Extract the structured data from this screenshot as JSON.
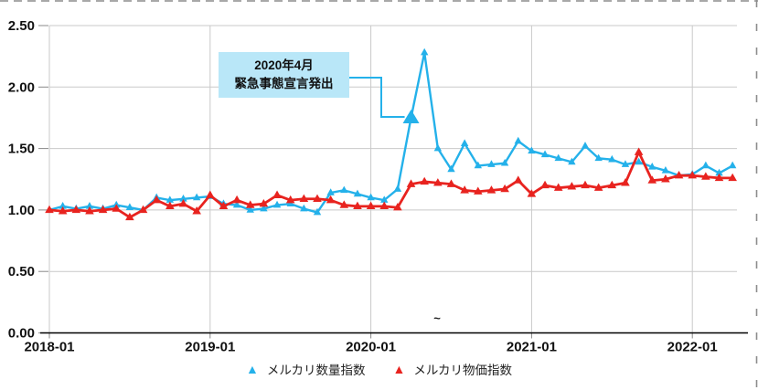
{
  "chart_data": {
    "type": "line",
    "title": "",
    "xlabel": "",
    "ylabel": "",
    "ylim": [
      0,
      2.5
    ],
    "grid": true,
    "legend_position": "bottom",
    "x": [
      "2018-01",
      "2018-02",
      "2018-03",
      "2018-04",
      "2018-05",
      "2018-06",
      "2018-07",
      "2018-08",
      "2018-09",
      "2018-10",
      "2018-11",
      "2018-12",
      "2019-01",
      "2019-02",
      "2019-03",
      "2019-04",
      "2019-05",
      "2019-06",
      "2019-07",
      "2019-08",
      "2019-09",
      "2019-10",
      "2019-11",
      "2019-12",
      "2020-01",
      "2020-02",
      "2020-03",
      "2020-04",
      "2020-05",
      "2020-06",
      "2020-07",
      "2020-08",
      "2020-09",
      "2020-10",
      "2020-11",
      "2020-12",
      "2021-01",
      "2021-02",
      "2021-03",
      "2021-04",
      "2021-05",
      "2021-06",
      "2021-07",
      "2021-08",
      "2021-09",
      "2021-10",
      "2021-11",
      "2021-12",
      "2022-01",
      "2022-02",
      "2022-03",
      "2022-04"
    ],
    "series": [
      {
        "name": "メルカリ数量指数",
        "color": "#24b1ea",
        "line_width": 2.4,
        "values": [
          1.0,
          1.03,
          1.01,
          1.03,
          1.01,
          1.04,
          1.02,
          1.0,
          1.1,
          1.08,
          1.09,
          1.1,
          1.11,
          1.05,
          1.04,
          1.0,
          1.01,
          1.04,
          1.05,
          1.01,
          0.98,
          1.14,
          1.16,
          1.13,
          1.1,
          1.08,
          1.17,
          1.75,
          2.28,
          1.5,
          1.33,
          1.54,
          1.36,
          1.37,
          1.38,
          1.56,
          1.48,
          1.45,
          1.42,
          1.39,
          1.52,
          1.42,
          1.41,
          1.37,
          1.39,
          1.35,
          1.32,
          1.28,
          1.29,
          1.36,
          1.3,
          1.36
        ]
      },
      {
        "name": "メルカリ物価指数",
        "color": "#e8231f",
        "line_width": 2.8,
        "values": [
          1.0,
          0.99,
          1.0,
          0.99,
          1.0,
          1.01,
          0.94,
          1.0,
          1.08,
          1.03,
          1.05,
          0.99,
          1.12,
          1.03,
          1.08,
          1.04,
          1.05,
          1.12,
          1.08,
          1.09,
          1.09,
          1.08,
          1.04,
          1.03,
          1.03,
          1.03,
          1.02,
          1.21,
          1.23,
          1.22,
          1.21,
          1.16,
          1.15,
          1.16,
          1.17,
          1.24,
          1.13,
          1.2,
          1.18,
          1.19,
          1.2,
          1.18,
          1.2,
          1.22,
          1.47,
          1.24,
          1.25,
          1.28,
          1.28,
          1.27,
          1.26,
          1.26
        ]
      }
    ],
    "yticks": [
      {
        "label": "0.00",
        "value": 0.0
      },
      {
        "label": "0.50",
        "value": 0.5
      },
      {
        "label": "1.00",
        "value": 1.0
      },
      {
        "label": "1.50",
        "value": 1.5
      },
      {
        "label": "2.00",
        "value": 2.0
      },
      {
        "label": "2.50",
        "value": 2.5
      }
    ],
    "xticks": [
      {
        "label": "2018-01",
        "month_index": 0
      },
      {
        "label": "2019-01",
        "month_index": 12
      },
      {
        "label": "2020-01",
        "month_index": 24
      },
      {
        "label": "2021-01",
        "month_index": 36
      },
      {
        "label": "2022-01",
        "month_index": 48
      }
    ],
    "annotation": {
      "line1": "2020年4月",
      "line2": "緊急事態宣言発出",
      "box_fill": "#b9e7f8",
      "target_series_index": 0,
      "target_month_index": 27
    },
    "highlight_point": {
      "series_index": 0,
      "month_index": 27
    }
  },
  "legend": {
    "items": [
      {
        "label": "メルカリ数量指数",
        "color": "#24b1ea"
      },
      {
        "label": "メルカリ物価指数",
        "color": "#e8231f"
      }
    ]
  },
  "stray_mark": {
    "text": "~"
  },
  "colors": {
    "grid": "#c9c9c9",
    "axis": "#000000",
    "tick": "#888888",
    "border_dash": "#8c8c8c"
  }
}
